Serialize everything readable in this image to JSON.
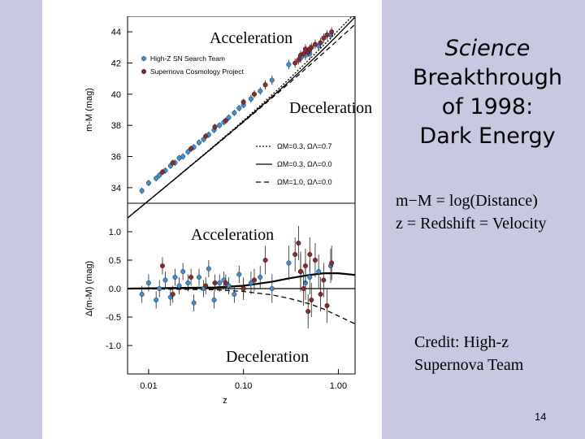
{
  "slide": {
    "title_italic": "Science",
    "title_lines": [
      "Breakthrough",
      "of 1998:",
      "Dark Energy"
    ],
    "definition_line1": "m−M = log(Distance)",
    "definition_line2": "z = Redshift = Velocity",
    "credit_line1": "Credit: High-z",
    "credit_line2": "Supernova Team",
    "page_number": "14",
    "overlays": {
      "top_acceleration": "Acceleration",
      "top_deceleration": "Deceleration",
      "bottom_acceleration": "Acceleration",
      "bottom_deceleration": "Deceleration"
    }
  },
  "colors": {
    "band": "#c8c8e2",
    "high_z": "#3a8fd6",
    "scp": "#8b2a2a"
  },
  "chart_data": [
    {
      "type": "scatter",
      "panel": "top",
      "title": "",
      "xlabel": "",
      "ylabel": "m-M (mag)",
      "xscale": "log",
      "xlim": [
        0.006,
        1.5
      ],
      "ylim": [
        33,
        45
      ],
      "yticks": [
        34,
        36,
        38,
        40,
        42,
        44
      ],
      "legend": [
        {
          "label": "High-Z SN Search Team",
          "marker": "circle",
          "color": "#3a8fd6"
        },
        {
          "label": "Supernova Cosmology Project",
          "marker": "circle",
          "color": "#8b2a2a"
        }
      ],
      "model_legend": [
        {
          "label": "ΩM=0.3, ΩΛ=0.7",
          "style": "dotted"
        },
        {
          "label": "ΩM=0.3, ΩΛ=0.0",
          "style": "solid"
        },
        {
          "label": "ΩM=1.0, ΩΛ=0.0",
          "style": "dashed"
        }
      ],
      "series": [
        {
          "name": "High-Z SN Search Team",
          "color": "#3a8fd6",
          "points": [
            [
              0.0085,
              33.8,
              0.2
            ],
            [
              0.01,
              34.3,
              0.2
            ],
            [
              0.012,
              34.6,
              0.2
            ],
            [
              0.013,
              34.8,
              0.2
            ],
            [
              0.015,
              35.1,
              0.2
            ],
            [
              0.017,
              35.4,
              0.2
            ],
            [
              0.019,
              35.6,
              0.2
            ],
            [
              0.021,
              35.9,
              0.2
            ],
            [
              0.023,
              36.0,
              0.2
            ],
            [
              0.026,
              36.3,
              0.2
            ],
            [
              0.03,
              36.6,
              0.2
            ],
            [
              0.034,
              36.9,
              0.2
            ],
            [
              0.038,
              37.1,
              0.2
            ],
            [
              0.043,
              37.4,
              0.2
            ],
            [
              0.049,
              37.7,
              0.2
            ],
            [
              0.056,
              38.0,
              0.2
            ],
            [
              0.062,
              38.2,
              0.2
            ],
            [
              0.07,
              38.5,
              0.2
            ],
            [
              0.08,
              38.8,
              0.2
            ],
            [
              0.09,
              39.1,
              0.2
            ],
            [
              0.1,
              39.3,
              0.2
            ],
            [
              0.12,
              39.7,
              0.25
            ],
            [
              0.15,
              40.2,
              0.25
            ],
            [
              0.2,
              40.9,
              0.3
            ],
            [
              0.3,
              41.9,
              0.3
            ],
            [
              0.4,
              42.3,
              0.3
            ],
            [
              0.45,
              42.5,
              0.3
            ],
            [
              0.5,
              42.6,
              0.3
            ],
            [
              0.62,
              43.1,
              0.3
            ],
            [
              0.83,
              43.8,
              0.3
            ]
          ]
        },
        {
          "name": "Supernova Cosmology Project",
          "color": "#8b2a2a",
          "points": [
            [
              0.014,
              35.0,
              0.2
            ],
            [
              0.018,
              35.6,
              0.2
            ],
            [
              0.028,
              36.5,
              0.2
            ],
            [
              0.04,
              37.3,
              0.2
            ],
            [
              0.05,
              37.9,
              0.2
            ],
            [
              0.065,
              38.3,
              0.2
            ],
            [
              0.1,
              39.5,
              0.2
            ],
            [
              0.13,
              40.0,
              0.25
            ],
            [
              0.17,
              40.6,
              0.3
            ],
            [
              0.35,
              42.0,
              0.3
            ],
            [
              0.38,
              42.2,
              0.3
            ],
            [
              0.4,
              42.5,
              0.3
            ],
            [
              0.43,
              42.6,
              0.3
            ],
            [
              0.45,
              42.9,
              0.3
            ],
            [
              0.48,
              42.7,
              0.3
            ],
            [
              0.5,
              42.9,
              0.3
            ],
            [
              0.52,
              43.0,
              0.3
            ],
            [
              0.57,
              43.2,
              0.3
            ],
            [
              0.65,
              43.3,
              0.3
            ],
            [
              0.7,
              43.6,
              0.3
            ],
            [
              0.76,
              43.8,
              0.3
            ],
            [
              0.85,
              44.0,
              0.3
            ]
          ]
        }
      ]
    },
    {
      "type": "scatter",
      "panel": "bottom",
      "title": "",
      "xlabel": "z",
      "ylabel": "Δ(m-M) (mag)",
      "xscale": "log",
      "xlim": [
        0.006,
        1.5
      ],
      "ylim": [
        -1.5,
        1.5
      ],
      "yticks": [
        -1.0,
        -0.5,
        0.0,
        0.5,
        1.0
      ],
      "ytick_labels": [
        "-1.0",
        "-0.5",
        "0.0",
        "0.5",
        "1.0"
      ],
      "xticks": [
        0.01,
        0.1,
        1.0
      ],
      "xtick_labels": [
        "0.01",
        "0.10",
        "1.00"
      ],
      "series": [
        {
          "name": "High-Z SN Search Team",
          "color": "#3a8fd6",
          "points": [
            [
              0.0085,
              -0.1,
              0.15
            ],
            [
              0.01,
              0.1,
              0.15
            ],
            [
              0.012,
              -0.2,
              0.15
            ],
            [
              0.013,
              0.0,
              0.15
            ],
            [
              0.015,
              0.15,
              0.15
            ],
            [
              0.017,
              -0.15,
              0.15
            ],
            [
              0.019,
              0.2,
              0.15
            ],
            [
              0.021,
              0.05,
              0.15
            ],
            [
              0.023,
              0.3,
              0.15
            ],
            [
              0.026,
              0.1,
              0.15
            ],
            [
              0.03,
              -0.25,
              0.15
            ],
            [
              0.034,
              0.2,
              0.15
            ],
            [
              0.038,
              0.0,
              0.15
            ],
            [
              0.043,
              0.35,
              0.15
            ],
            [
              0.049,
              -0.2,
              0.15
            ],
            [
              0.056,
              0.1,
              0.15
            ],
            [
              0.062,
              0.15,
              0.15
            ],
            [
              0.07,
              0.05,
              0.15
            ],
            [
              0.08,
              -0.1,
              0.15
            ],
            [
              0.09,
              0.25,
              0.15
            ],
            [
              0.1,
              0.0,
              0.15
            ],
            [
              0.12,
              0.1,
              0.2
            ],
            [
              0.15,
              0.2,
              0.2
            ],
            [
              0.2,
              0.0,
              0.25
            ],
            [
              0.3,
              0.45,
              0.3
            ],
            [
              0.4,
              0.3,
              0.3
            ],
            [
              0.45,
              0.1,
              0.3
            ],
            [
              0.5,
              0.2,
              0.3
            ],
            [
              0.62,
              0.3,
              0.3
            ],
            [
              0.83,
              0.4,
              0.3
            ]
          ]
        },
        {
          "name": "Supernova Cosmology Project",
          "color": "#8b2a2a",
          "points": [
            [
              0.014,
              0.4,
              0.15
            ],
            [
              0.018,
              -0.1,
              0.15
            ],
            [
              0.028,
              0.2,
              0.15
            ],
            [
              0.04,
              0.05,
              0.15
            ],
            [
              0.05,
              0.1,
              0.15
            ],
            [
              0.065,
              0.1,
              0.15
            ],
            [
              0.1,
              0.0,
              0.2
            ],
            [
              0.13,
              0.15,
              0.2
            ],
            [
              0.17,
              0.5,
              0.25
            ],
            [
              0.35,
              0.6,
              0.3
            ],
            [
              0.38,
              0.8,
              0.3
            ],
            [
              0.4,
              0.3,
              0.35
            ],
            [
              0.43,
              0.0,
              0.3
            ],
            [
              0.45,
              0.4,
              0.3
            ],
            [
              0.48,
              -0.4,
              0.3
            ],
            [
              0.5,
              0.6,
              0.3
            ],
            [
              0.52,
              -0.2,
              0.3
            ],
            [
              0.57,
              0.5,
              0.3
            ],
            [
              0.65,
              -0.1,
              0.3
            ],
            [
              0.7,
              0.15,
              0.3
            ],
            [
              0.76,
              -0.3,
              0.3
            ],
            [
              0.85,
              0.45,
              0.3
            ]
          ]
        }
      ],
      "model_curves": [
        {
          "label": "ΩM=0.3, ΩΛ=0.7",
          "style": "solid-thick",
          "x": [
            0.006,
            0.05,
            0.1,
            0.2,
            0.3,
            0.5,
            0.7,
            1.0,
            1.5
          ],
          "y": [
            0.0,
            0.02,
            0.05,
            0.12,
            0.18,
            0.24,
            0.27,
            0.27,
            0.24
          ]
        },
        {
          "label": "ΩM=0.3, ΩΛ=0.0",
          "style": "solid",
          "x": [
            0.006,
            0.1,
            0.3,
            0.6,
            1.0,
            1.5
          ],
          "y": [
            0.0,
            0.0,
            0.0,
            0.0,
            0.0,
            0.0
          ]
        },
        {
          "label": "ΩM=1.0, ΩΛ=0.0",
          "style": "dashed",
          "x": [
            0.006,
            0.05,
            0.1,
            0.2,
            0.3,
            0.5,
            0.7,
            1.0,
            1.5
          ],
          "y": [
            0.0,
            -0.02,
            -0.05,
            -0.11,
            -0.17,
            -0.27,
            -0.36,
            -0.48,
            -0.62
          ]
        }
      ]
    }
  ]
}
